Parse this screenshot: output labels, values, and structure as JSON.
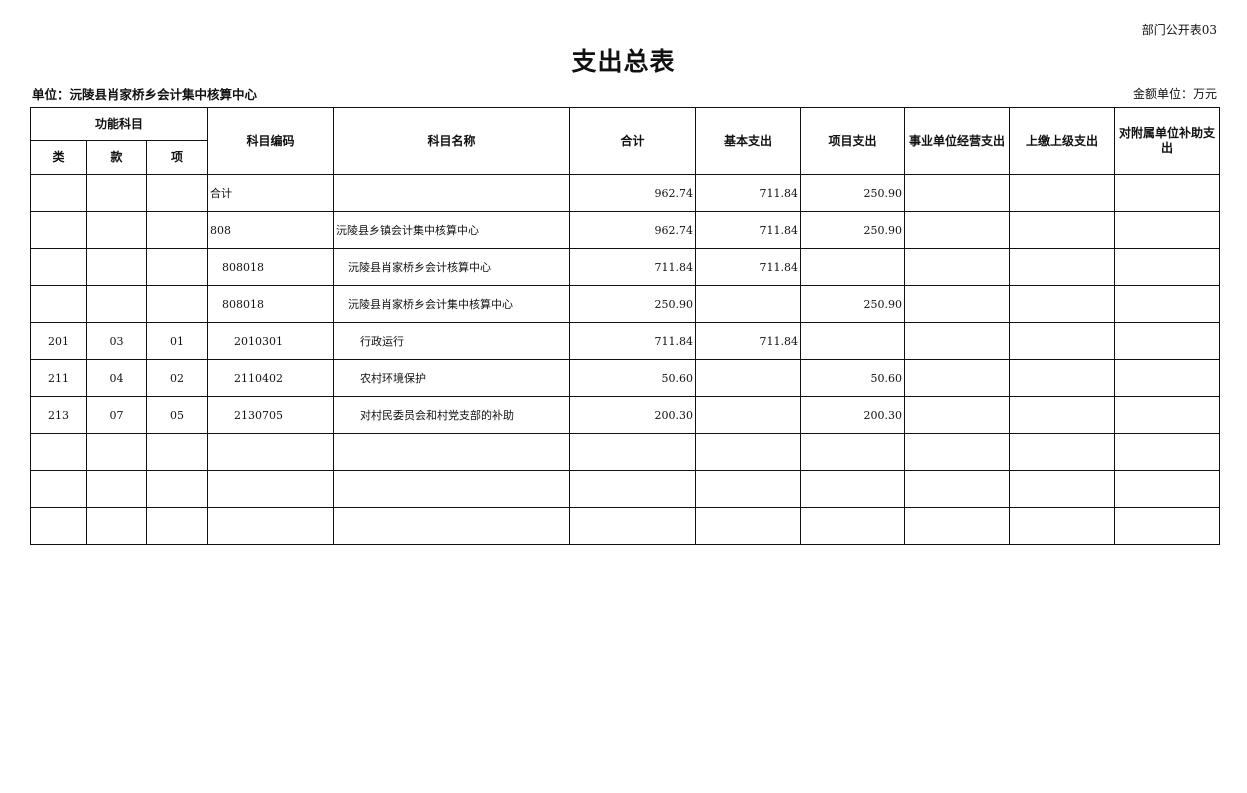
{
  "form_number": "部门公开表03",
  "title": "支出总表",
  "unit_label": "单位：沅陵县肖家桥乡会计集中核算中心",
  "amount_unit": "金额单位：万元",
  "headers": {
    "function_subject": "功能科目",
    "class": "类",
    "section": "款",
    "item": "项",
    "subject_code": "科目编码",
    "subject_name": "科目名称",
    "total": "合计",
    "basic_expenditure": "基本支出",
    "project_expenditure": "项目支出",
    "enterprise_operation": "事业单位经营支出",
    "remit_to_superior": "上缴上级支出",
    "subsidy_to_affiliates": "对附属单位补助支出"
  },
  "rows": [
    {
      "level": 0,
      "class": "",
      "section": "",
      "item": "",
      "code": "合计",
      "name": "",
      "total": "962.74",
      "basic": "711.84",
      "project": "250.90",
      "operation": "",
      "remit": "",
      "subsidy": ""
    },
    {
      "level": 0,
      "class": "",
      "section": "",
      "item": "",
      "code": "808",
      "name": "沅陵县乡镇会计集中核算中心",
      "total": "962.74",
      "basic": "711.84",
      "project": "250.90",
      "operation": "",
      "remit": "",
      "subsidy": ""
    },
    {
      "level": 1,
      "class": "",
      "section": "",
      "item": "",
      "code": "808018",
      "name": "沅陵县肖家桥乡会计核算中心",
      "total": "711.84",
      "basic": "711.84",
      "project": "",
      "operation": "",
      "remit": "",
      "subsidy": ""
    },
    {
      "level": 1,
      "class": "",
      "section": "",
      "item": "",
      "code": "808018",
      "name": "沅陵县肖家桥乡会计集中核算中心",
      "total": "250.90",
      "basic": "",
      "project": "250.90",
      "operation": "",
      "remit": "",
      "subsidy": ""
    },
    {
      "level": 2,
      "class": "201",
      "section": "03",
      "item": "01",
      "code": "2010301",
      "name": "行政运行",
      "total": "711.84",
      "basic": "711.84",
      "project": "",
      "operation": "",
      "remit": "",
      "subsidy": ""
    },
    {
      "level": 2,
      "class": "211",
      "section": "04",
      "item": "02",
      "code": "2110402",
      "name": "农村环境保护",
      "total": "50.60",
      "basic": "",
      "project": "50.60",
      "operation": "",
      "remit": "",
      "subsidy": ""
    },
    {
      "level": 2,
      "class": "213",
      "section": "07",
      "item": "05",
      "code": "2130705",
      "name": "对村民委员会和村党支部的补助",
      "total": "200.30",
      "basic": "",
      "project": "200.30",
      "operation": "",
      "remit": "",
      "subsidy": ""
    },
    {
      "level": 0,
      "class": "",
      "section": "",
      "item": "",
      "code": "",
      "name": "",
      "total": "",
      "basic": "",
      "project": "",
      "operation": "",
      "remit": "",
      "subsidy": ""
    },
    {
      "level": 0,
      "class": "",
      "section": "",
      "item": "",
      "code": "",
      "name": "",
      "total": "",
      "basic": "",
      "project": "",
      "operation": "",
      "remit": "",
      "subsidy": ""
    },
    {
      "level": 0,
      "class": "",
      "section": "",
      "item": "",
      "code": "",
      "name": "",
      "total": "",
      "basic": "",
      "project": "",
      "operation": "",
      "remit": "",
      "subsidy": ""
    }
  ]
}
